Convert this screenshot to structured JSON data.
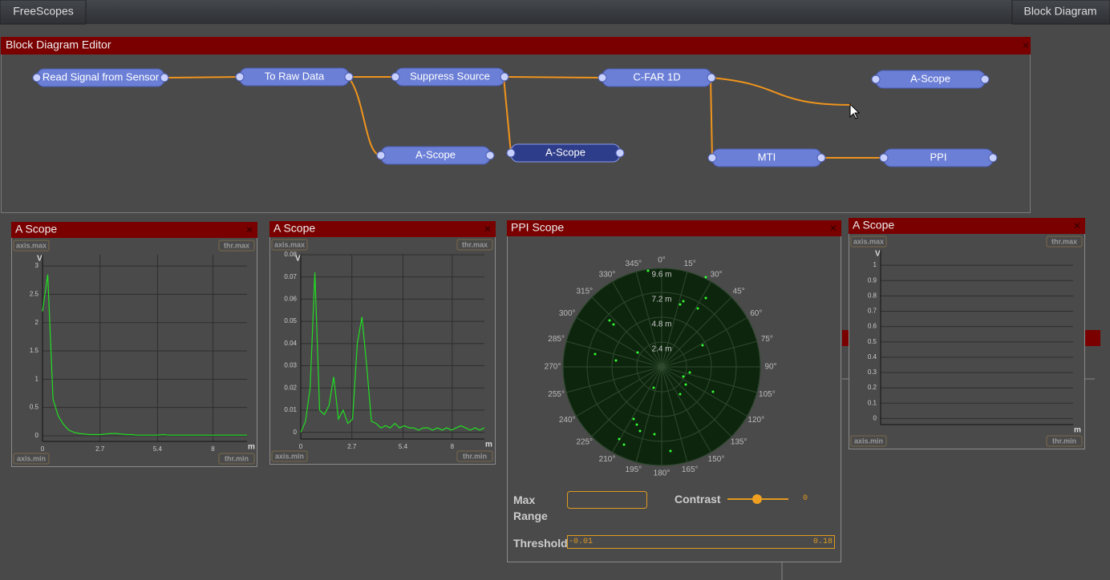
{
  "topbar": {
    "app": "FreeScopes",
    "view": "Block Diagram"
  },
  "editor": {
    "title": "Block Diagram Editor",
    "nodes": [
      {
        "label": "Read Signal from Sensor"
      },
      {
        "label": "To Raw Data"
      },
      {
        "label": "Suppress Source"
      },
      {
        "label": "C-FAR 1D"
      },
      {
        "label": "A-Scope"
      },
      {
        "label": "A-Scope"
      },
      {
        "label": "A-Scope"
      },
      {
        "label": "MTI"
      },
      {
        "label": "PPI"
      }
    ]
  },
  "scopes": [
    {
      "title": "A Scope",
      "tags": [
        "axis.max",
        "thr.max",
        "axis.min",
        "thr.min"
      ],
      "y_unit": "V",
      "x_unit": "m",
      "ylim": [
        -0.1,
        3.2
      ],
      "yticks": [
        0,
        0.5,
        1,
        1.5,
        2,
        2.5,
        3
      ],
      "xlim": [
        0,
        9.6
      ],
      "xticks": [
        0,
        2.7,
        5.4,
        8
      ],
      "values": [
        2.2,
        2.85,
        0.65,
        0.35,
        0.2,
        0.1,
        0.06,
        0.04,
        0.03,
        0.02,
        0.02,
        0.02,
        0.03,
        0.04,
        0.04,
        0.03,
        0.02,
        0.02,
        0.01,
        0.01,
        0.01,
        0.01,
        0.01,
        0.02,
        0.01,
        0.01,
        0.01,
        0.01,
        0.01,
        0.01,
        0.01,
        0.01,
        0.01,
        0.01,
        0.01,
        0.01,
        0.01,
        0.01,
        0.01,
        0.01
      ]
    },
    {
      "title": "A Scope",
      "tags": [
        "axis.max",
        "thr.max",
        "axis.min",
        "thr.min"
      ],
      "y_unit": "V",
      "x_unit": "m",
      "ylim": [
        -0.003,
        0.08
      ],
      "yticks": [
        0,
        0.01,
        0.02,
        0.03,
        0.04,
        0.05,
        0.06,
        0.07,
        0.08
      ],
      "xlim": [
        0,
        9.7
      ],
      "xticks": [
        0,
        2.7,
        5.4,
        8
      ],
      "values": [
        0.0,
        0.005,
        0.02,
        0.072,
        0.01,
        0.008,
        0.012,
        0.025,
        0.006,
        0.01,
        0.004,
        0.006,
        0.04,
        0.052,
        0.03,
        0.005,
        0.004,
        0.002,
        0.003,
        0.002,
        0.004,
        0.002,
        0.003,
        0.002,
        0.002,
        0.001,
        0.002,
        0.002,
        0.001,
        0.002,
        0.001,
        0.002,
        0.001,
        0.002,
        0.003,
        0.002,
        0.001,
        0.002,
        0.001,
        0.002
      ]
    },
    {
      "title": "A Scope",
      "tags": [
        "axis.max",
        "thr.max",
        "axis.min",
        "thr.min"
      ],
      "y_unit": "V",
      "x_unit": "m",
      "ylim": [
        -0.04,
        1.1
      ],
      "yticks": [
        0,
        0.1,
        0.2,
        0.3,
        0.4,
        0.5,
        0.6,
        0.7,
        0.8,
        0.9,
        1
      ]
    }
  ],
  "ppi": {
    "title": "PPI Scope",
    "angle_labels": [
      "0°",
      "15°",
      "30°",
      "45°",
      "60°",
      "75°",
      "90°",
      "105°",
      "120°",
      "135°",
      "150°",
      "165°",
      "180°",
      "195°",
      "210°",
      "225°",
      "240°",
      "255°",
      "270°",
      "285°",
      "300°",
      "315°",
      "330°",
      "345°"
    ],
    "range_labels": [
      "2.4 m",
      "4.8 m",
      "7.2 m",
      "9.6 m"
    ],
    "controls": {
      "max_range": "Max Range",
      "contrast": "Contrast",
      "contrast_value": 0,
      "threshold": "Threshold",
      "threshold_min": -0.01,
      "threshold_max": 0.18
    }
  }
}
